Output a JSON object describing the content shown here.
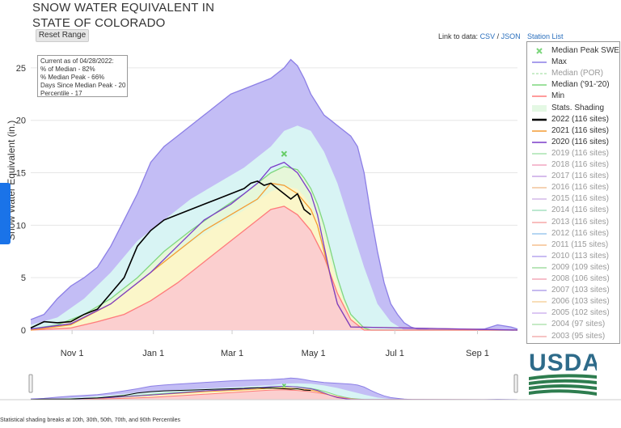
{
  "page": {
    "title_line1": "SNOW WATER EQUIVALENT IN",
    "title_line2": "STATE OF COLORADO",
    "reset_label": "Reset Range",
    "link_prefix": "Link to data:",
    "link_csv": "CSV",
    "link_sep": "/",
    "link_json": "JSON",
    "station_list": "Station List",
    "footnote": "Statistical shading breaks at 10th, 30th, 50th, 70th, and 90th Percentiles",
    "logo_text": "USDA"
  },
  "info_box": [
    "Current as of 04/28/2022:",
    "% of Median - 82%",
    "% Median Peak - 66%",
    "Days Since Median Peak - 20",
    "Percentile - 17"
  ],
  "legend": [
    {
      "label": "Median Peak SWE",
      "sym": "x",
      "color": "#7bd67b",
      "faded": false
    },
    {
      "label": "Max",
      "sym": "line",
      "color": "#8c7fe6",
      "faded": false
    },
    {
      "label": "Median (POR)",
      "sym": "dash",
      "color": "#b9e7b9",
      "faded": true
    },
    {
      "label": "Median ('91-'20)",
      "sym": "line",
      "color": "#7fd77f",
      "faded": false
    },
    {
      "label": "Min",
      "sym": "line",
      "color": "#ff7b7b",
      "faded": false
    },
    {
      "label": "Stats. Shading",
      "sym": "fill",
      "color": "#e4f8e4",
      "faded": false
    },
    {
      "label": "2022 (116 sites)",
      "sym": "thick",
      "color": "#000000",
      "faded": false
    },
    {
      "label": "2021 (116 sites)",
      "sym": "line",
      "color": "#f39c33",
      "faded": false
    },
    {
      "label": "2020 (116 sites)",
      "sym": "line",
      "color": "#7b3cc9",
      "faded": false
    },
    {
      "label": "2019 (116 sites)",
      "sym": "line",
      "color": "#a8e3b0",
      "faded": true
    },
    {
      "label": "2018 (116 sites)",
      "sym": "line",
      "color": "#f2a6c0",
      "faded": true
    },
    {
      "label": "2017 (116 sites)",
      "sym": "line",
      "color": "#c9a6e6",
      "faded": true
    },
    {
      "label": "2016 (116 sites)",
      "sym": "line",
      "color": "#f2c49a",
      "faded": true
    },
    {
      "label": "2015 (116 sites)",
      "sym": "line",
      "color": "#d3b9e9",
      "faded": true
    },
    {
      "label": "2014 (116 sites)",
      "sym": "line",
      "color": "#a6e0c0",
      "faded": true
    },
    {
      "label": "2013 (116 sites)",
      "sym": "line",
      "color": "#f7a8a8",
      "faded": true
    },
    {
      "label": "2012 (116 sites)",
      "sym": "line",
      "color": "#9ec9ee",
      "faded": true
    },
    {
      "label": "2011 (115 sites)",
      "sym": "line",
      "color": "#f5c08f",
      "faded": true
    },
    {
      "label": "2010 (113 sites)",
      "sym": "line",
      "color": "#b7a6ee",
      "faded": true
    },
    {
      "label": "2009 (109 sites)",
      "sym": "line",
      "color": "#a3dea3",
      "faded": true
    },
    {
      "label": "2008 (106 sites)",
      "sym": "line",
      "color": "#f4a9b9",
      "faded": true
    },
    {
      "label": "2007 (103 sites)",
      "sym": "line",
      "color": "#b3a3ec",
      "faded": true
    },
    {
      "label": "2006 (103 sites)",
      "sym": "line",
      "color": "#f6d4a0",
      "faded": true
    },
    {
      "label": "2005 (102 sites)",
      "sym": "line",
      "color": "#d1b5ef",
      "faded": true
    },
    {
      "label": "2004 (97 sites)",
      "sym": "line",
      "color": "#b4e4b4",
      "faded": true
    },
    {
      "label": "2003 (95 sites)",
      "sym": "line",
      "color": "#f4b0b0",
      "faded": true
    }
  ],
  "chart_data": {
    "type": "area",
    "ylabel": "Snow Water Equivalent (in.)",
    "ylim": [
      0,
      27
    ],
    "yticks": [
      0,
      5,
      10,
      15,
      20,
      25
    ],
    "x_unit": "day of water year (Oct 1 = 0)",
    "xlim": [
      0,
      365
    ],
    "xticks": [
      {
        "label": "Nov 1",
        "day": 31
      },
      {
        "label": "Jan 1",
        "day": 92
      },
      {
        "label": "Mar 1",
        "day": 151
      },
      {
        "label": "May 1",
        "day": 212
      },
      {
        "label": "Jul 1",
        "day": 273
      },
      {
        "label": "Sep 1",
        "day": 335
      }
    ],
    "grid": true,
    "legend_position": "right",
    "median_peak": {
      "day": 190,
      "value": 16.8
    },
    "series": [
      {
        "name": "Max",
        "color": "#8c7fe6",
        "x": [
          0,
          10,
          20,
          30,
          40,
          50,
          60,
          70,
          80,
          90,
          100,
          110,
          120,
          130,
          140,
          150,
          160,
          170,
          180,
          190,
          195,
          200,
          205,
          210,
          215,
          220,
          225,
          230,
          235,
          240,
          245,
          250,
          255,
          260,
          265,
          270,
          275,
          280,
          285,
          290,
          300,
          320,
          340,
          350,
          360,
          365
        ],
        "values": [
          1.0,
          1.5,
          3.0,
          4.2,
          5.0,
          6.0,
          8.0,
          10.5,
          13.0,
          16.0,
          17.5,
          18.5,
          19.5,
          20.5,
          21.5,
          22.5,
          23.0,
          23.5,
          24.0,
          25.0,
          25.8,
          25.2,
          24.0,
          22.5,
          21.5,
          20.5,
          20.0,
          19.5,
          19.0,
          18.5,
          17.5,
          15.0,
          11.0,
          7.5,
          4.5,
          2.5,
          1.5,
          0.7,
          0.3,
          0.1,
          0.05,
          0.05,
          0.1,
          0.5,
          0.3,
          0.1
        ]
      },
      {
        "name": "90th",
        "color": "#d8f4f4",
        "x": [
          0,
          20,
          40,
          60,
          80,
          100,
          120,
          140,
          160,
          180,
          190,
          200,
          210,
          220,
          230,
          240,
          250,
          260,
          270,
          280,
          365
        ],
        "values": [
          0.5,
          1.2,
          3.0,
          5.5,
          8.5,
          10.5,
          12.5,
          14.0,
          15.5,
          17.5,
          19.0,
          19.5,
          19.0,
          17.0,
          14.0,
          10.0,
          6.0,
          2.5,
          0.8,
          0.0,
          0.0
        ]
      },
      {
        "name": "Median ('91-'20)",
        "color": "#7fd77f",
        "x": [
          0,
          20,
          40,
          60,
          80,
          100,
          120,
          140,
          160,
          170,
          180,
          190,
          200,
          205,
          210,
          215,
          220,
          225,
          230,
          235,
          240,
          250,
          255,
          365
        ],
        "values": [
          0.1,
          0.5,
          1.5,
          3.0,
          5.0,
          7.5,
          9.5,
          11.3,
          13.0,
          14.0,
          15.0,
          15.6,
          15.3,
          14.5,
          13.5,
          12.0,
          10.0,
          7.5,
          5.0,
          3.0,
          1.5,
          0.2,
          0.0,
          0.0
        ]
      },
      {
        "name": "Min",
        "color": "#ff7b7b",
        "x": [
          0,
          30,
          50,
          70,
          90,
          110,
          130,
          150,
          170,
          180,
          190,
          200,
          210,
          220,
          230,
          240,
          250,
          365
        ],
        "values": [
          0.0,
          0.2,
          0.8,
          1.5,
          2.8,
          4.5,
          6.5,
          8.5,
          10.5,
          11.5,
          11.8,
          11.0,
          9.5,
          7.0,
          3.5,
          1.0,
          0.0,
          0.0
        ]
      },
      {
        "name": "2021 (116 sites)",
        "color": "#f39c33",
        "x": [
          0,
          30,
          60,
          90,
          110,
          130,
          150,
          170,
          180,
          190,
          200,
          210,
          215,
          220,
          225,
          230,
          240,
          365
        ],
        "values": [
          0.0,
          0.5,
          2.5,
          5.5,
          7.5,
          9.5,
          11.0,
          12.5,
          14.0,
          13.8,
          13.0,
          11.5,
          10.0,
          7.5,
          5.0,
          2.5,
          0.3,
          0.0
        ]
      },
      {
        "name": "2020 (116 sites)",
        "color": "#7b3cc9",
        "x": [
          0,
          30,
          60,
          90,
          110,
          130,
          150,
          170,
          180,
          190,
          200,
          205,
          210,
          215,
          220,
          225,
          230,
          240,
          365
        ],
        "values": [
          0.1,
          0.6,
          2.5,
          5.5,
          8.0,
          10.5,
          12.0,
          14.0,
          15.5,
          16.0,
          15.0,
          14.0,
          13.0,
          11.0,
          8.0,
          5.0,
          2.5,
          0.3,
          0.0
        ]
      },
      {
        "name": "2022 (116 sites)",
        "color": "#000000",
        "x": [
          0,
          10,
          20,
          30,
          40,
          50,
          60,
          70,
          80,
          90,
          100,
          110,
          120,
          130,
          140,
          150,
          160,
          165,
          170,
          175,
          180,
          185,
          190,
          195,
          200,
          205,
          210
        ],
        "values": [
          0.2,
          0.8,
          0.7,
          0.8,
          1.5,
          2.0,
          3.5,
          5.0,
          8.0,
          9.5,
          10.5,
          11.0,
          11.5,
          12.0,
          12.5,
          13.0,
          13.5,
          14.0,
          14.2,
          13.8,
          14.0,
          13.5,
          13.0,
          12.5,
          13.0,
          11.5,
          11.0
        ]
      }
    ]
  }
}
